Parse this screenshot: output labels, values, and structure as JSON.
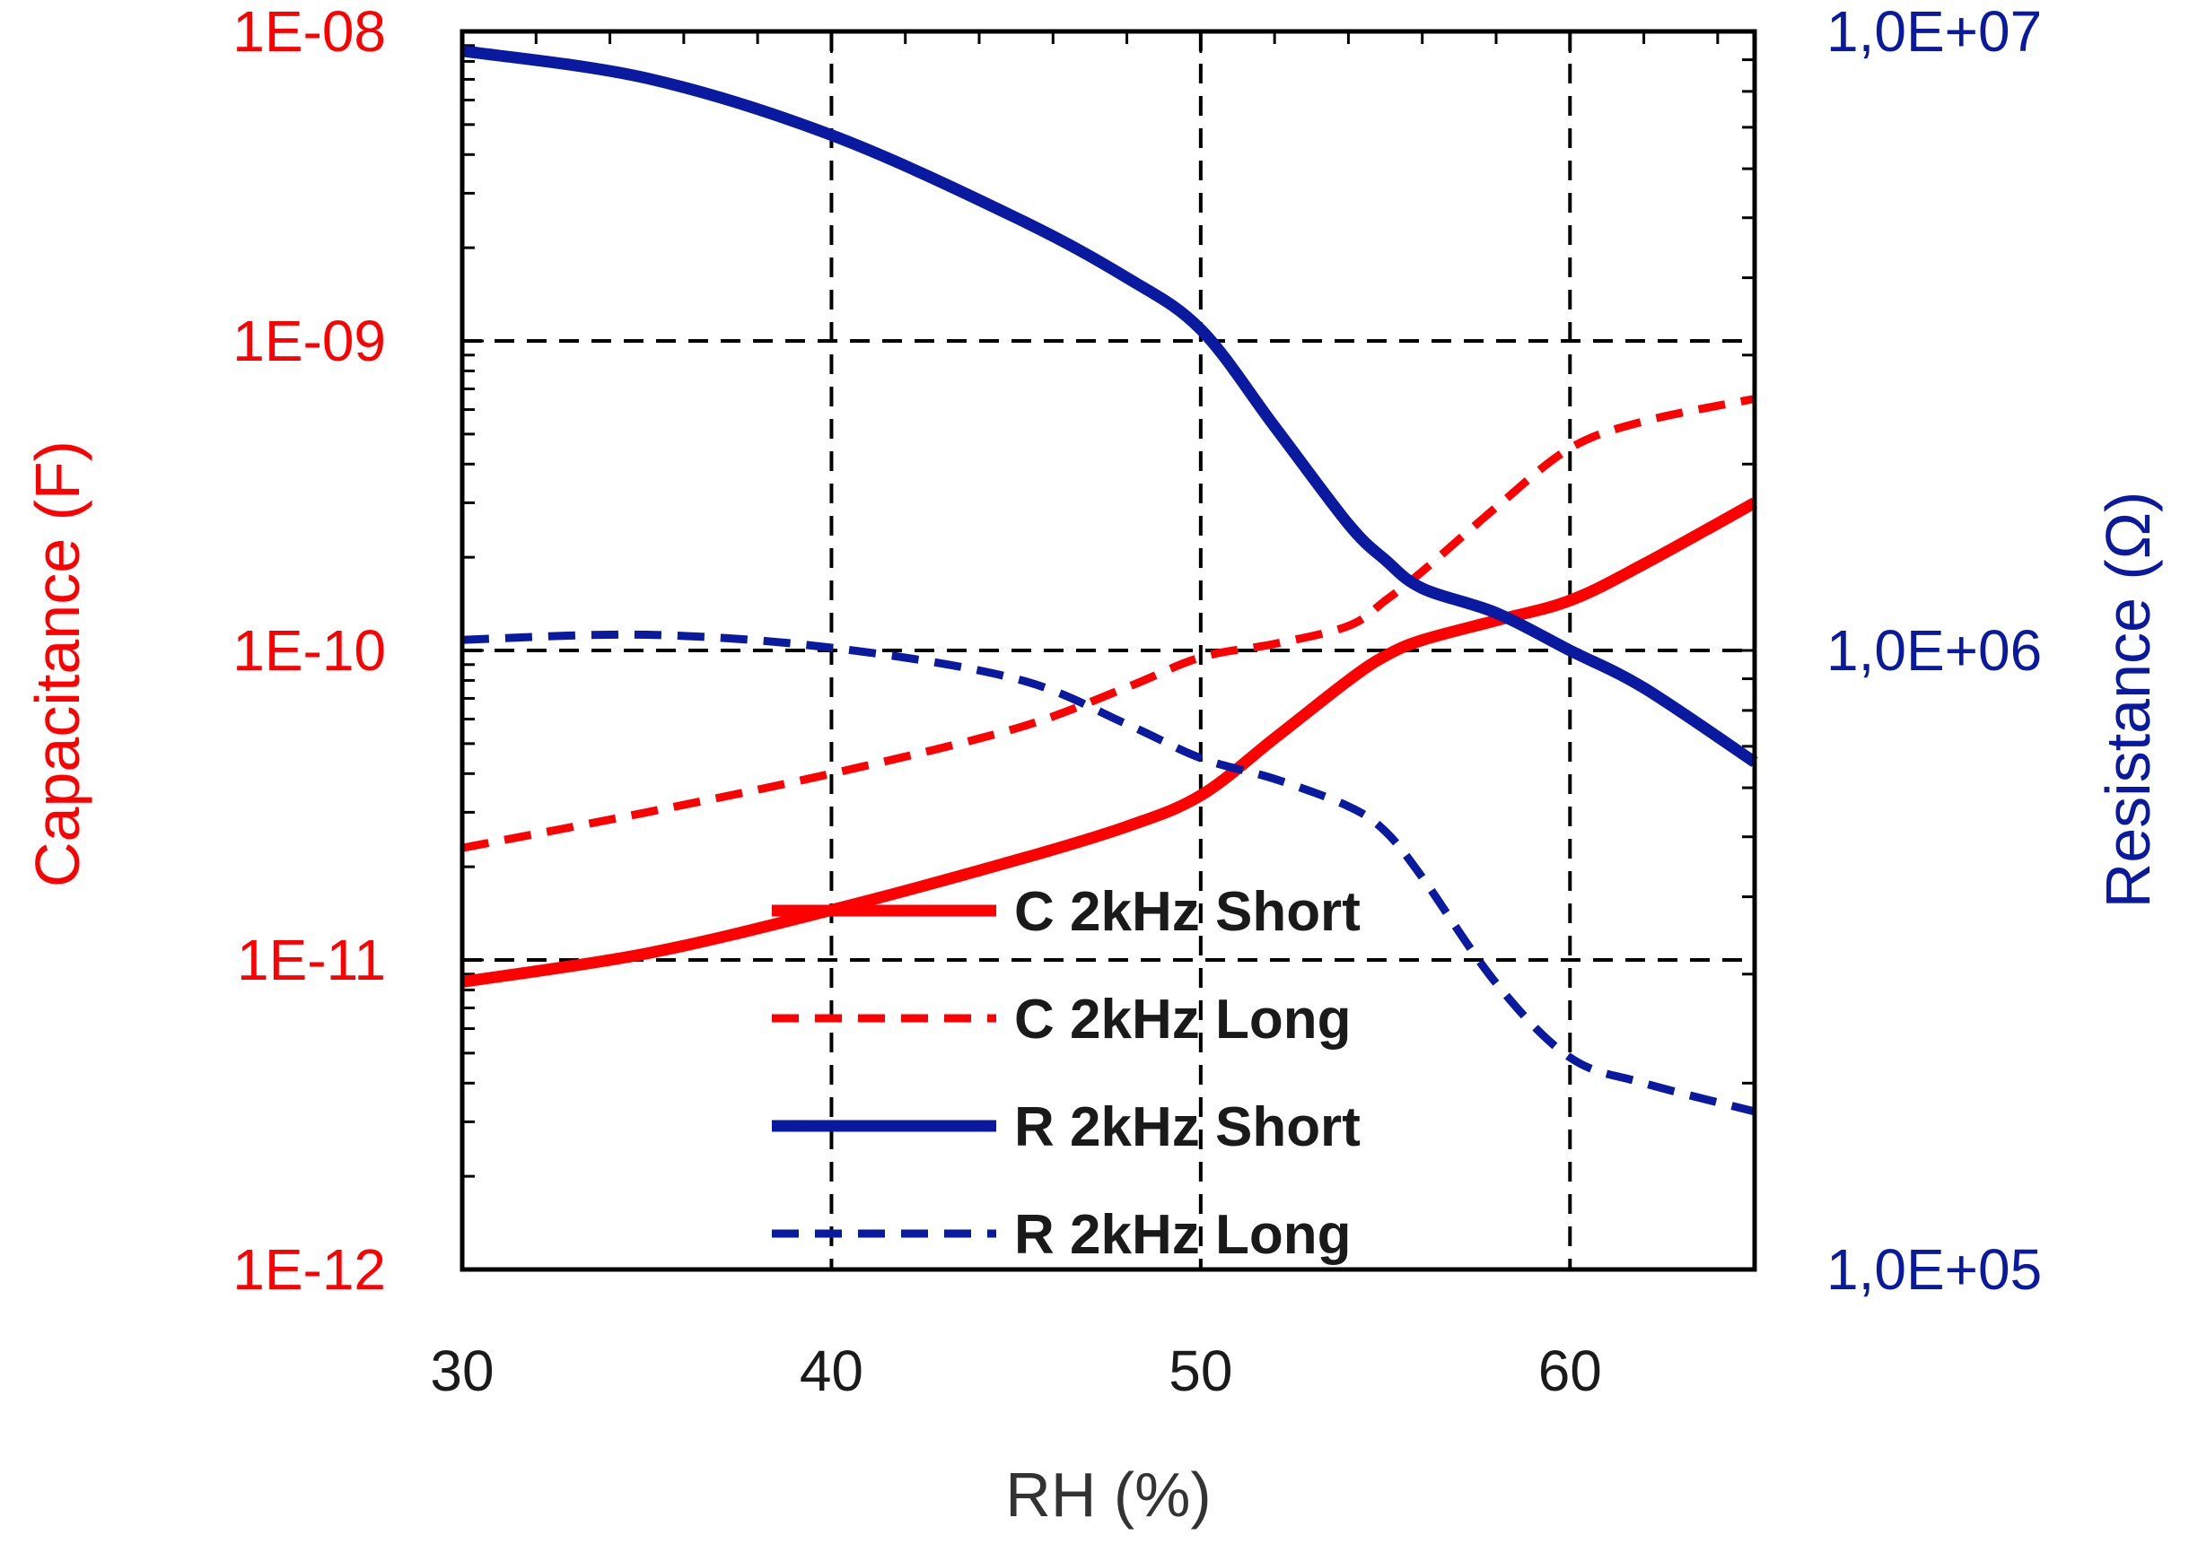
{
  "chart_data": {
    "type": "line",
    "xlabel": "RH (%)",
    "ylabel_left": "Capacitance (F)",
    "ylabel_right": "Resistance (Ω)",
    "xlim": [
      30,
      65
    ],
    "x_ticks": [
      "30",
      "40",
      "50",
      "60"
    ],
    "x_tick_values": [
      30,
      40,
      50,
      60
    ],
    "left_axis": {
      "scale": "log",
      "range": [
        1e-12,
        1e-08
      ],
      "ticks": [
        "1E-08",
        "1E-09",
        "1E-10",
        "1E-11",
        "1E-12"
      ],
      "tick_values": [
        1e-08,
        1e-09,
        1e-10,
        1e-11,
        1e-12
      ],
      "color": "#ff0000"
    },
    "right_axis": {
      "scale": "log",
      "range": [
        100000,
        10000000
      ],
      "ticks": [
        "1,0E+07",
        "1,0E+06",
        "1,0E+05"
      ],
      "tick_values": [
        10000000,
        1000000,
        100000
      ],
      "color": "#0a1aa0"
    },
    "grid": {
      "x_values": [
        40,
        50,
        60
      ],
      "left_y_values": [
        1e-09,
        1e-10,
        1e-11
      ],
      "style": "dashed"
    },
    "legend_position": "lower-center",
    "series": [
      {
        "name": "C 2kHz Short",
        "axis": "left",
        "color": "#ff0000",
        "style": "solid",
        "x": [
          30,
          35,
          40,
          45,
          48,
          50,
          52,
          54,
          55,
          56,
          58,
          60,
          62,
          65
        ],
        "values": [
          8.5e-12,
          1.05e-11,
          1.45e-11,
          2.1e-11,
          2.7e-11,
          3.4e-11,
          5.2e-11,
          8e-11,
          9.6e-11,
          1.08e-10,
          1.25e-10,
          1.45e-10,
          1.9e-10,
          3e-10
        ]
      },
      {
        "name": "C 2kHz Long",
        "axis": "left",
        "color": "#ff0000",
        "style": "dashed",
        "x": [
          30,
          35,
          40,
          45,
          48,
          50,
          52,
          54,
          55,
          56,
          58,
          60,
          62,
          65
        ],
        "values": [
          2.3e-11,
          3e-11,
          4e-11,
          5.6e-11,
          7.6e-11,
          9.5e-11,
          1.05e-10,
          1.2e-10,
          1.45e-10,
          1.8e-10,
          2.9e-10,
          4.5e-10,
          5.5e-10,
          6.5e-10
        ]
      },
      {
        "name": "R 2kHz Short",
        "axis": "right",
        "color": "#0a1aa0",
        "style": "solid",
        "x": [
          30,
          35,
          40,
          45,
          48,
          50,
          52,
          54,
          55,
          56,
          58,
          60,
          62,
          65
        ],
        "values": [
          9300000,
          8400000,
          6800000,
          5000000,
          4000000,
          3300000,
          2300000,
          1600000,
          1400000,
          1260000,
          1150000,
          1000000,
          870000,
          660000
        ]
      },
      {
        "name": "R 2kHz Long",
        "axis": "right",
        "color": "#0a1aa0",
        "style": "dashed",
        "x": [
          30,
          35,
          40,
          45,
          48,
          50,
          52,
          54,
          55,
          56,
          58,
          60,
          62,
          65
        ],
        "values": [
          1040000,
          1060000,
          1010000,
          900000,
          760000,
          670000,
          620000,
          560000,
          510000,
          430000,
          290000,
          220000,
          200000,
          180000
        ]
      }
    ]
  }
}
